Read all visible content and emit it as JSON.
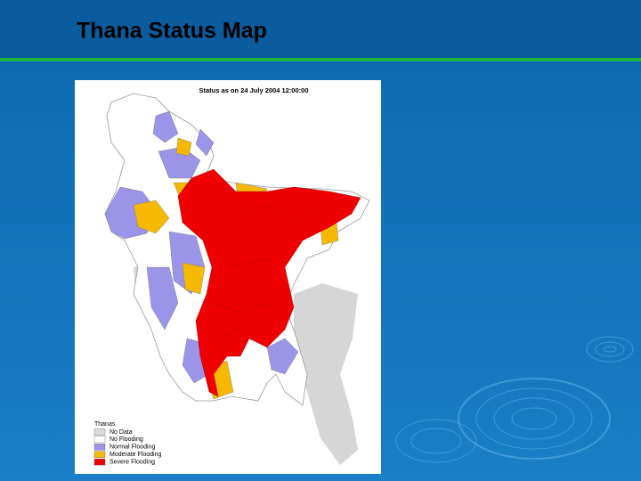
{
  "header": {
    "title": "Thana Status Map"
  },
  "map": {
    "caption": "Status as on 24 July 2004 12:00:00",
    "legend": {
      "title": "Thanas",
      "items": [
        {
          "label": "No Data",
          "color": "#d9d9d9"
        },
        {
          "label": "No Flooding",
          "color": "#ffffff"
        },
        {
          "label": "Normal Flooding",
          "color": "#9b94e8"
        },
        {
          "label": "Moderate Flooding",
          "color": "#f6b800"
        },
        {
          "label": "Severe Flooding",
          "color": "#ee0000"
        }
      ]
    }
  }
}
